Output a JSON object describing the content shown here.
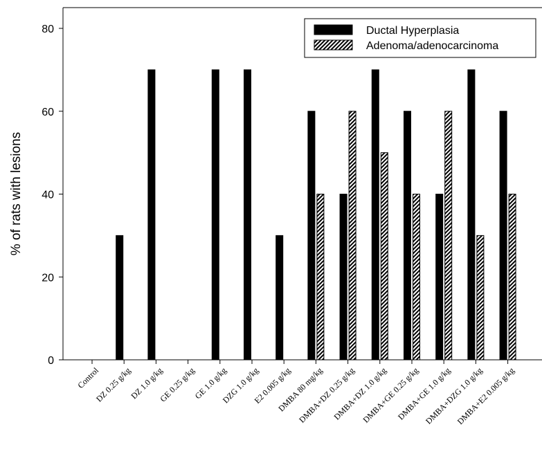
{
  "chart_data": {
    "type": "bar",
    "title": "",
    "xlabel": "",
    "ylabel": "% of rats with lesions",
    "ylim": [
      0,
      80
    ],
    "yticks": [
      0,
      20,
      40,
      60,
      80
    ],
    "grid": false,
    "legend_position": "top-right",
    "categories": [
      "Control",
      "DZ 0.25 g/kg",
      "DZ 1.0 g/kg",
      "GE 0.25 g/kg",
      "GE 1.0 g/kg",
      "DZG 1.0 g/kg",
      "E2 0.005 g/kg",
      "DMBA 80 mg/kg",
      "DMBA+DZ 0.25 g/kg",
      "DMBA+DZ 1.0 g/kg",
      "DMBA+GE 0.25 g/kg",
      "DMBA+GE 1.0 g/kg",
      "DMBA+DZG 1.0 g/kg",
      "DMBA+E2 0.005 g/kg"
    ],
    "series": [
      {
        "name": "Ductal Hyperplasia",
        "color": "#000000",
        "fill": "solid",
        "values": [
          0,
          30,
          70,
          0,
          70,
          70,
          30,
          60,
          40,
          70,
          60,
          40,
          70,
          60
        ]
      },
      {
        "name": "Adenoma/adenocarcinoma",
        "color": "#000000",
        "fill": "hatched",
        "values": [
          0,
          0,
          0,
          0,
          0,
          0,
          0,
          40,
          60,
          50,
          40,
          60,
          30,
          40
        ]
      }
    ]
  }
}
